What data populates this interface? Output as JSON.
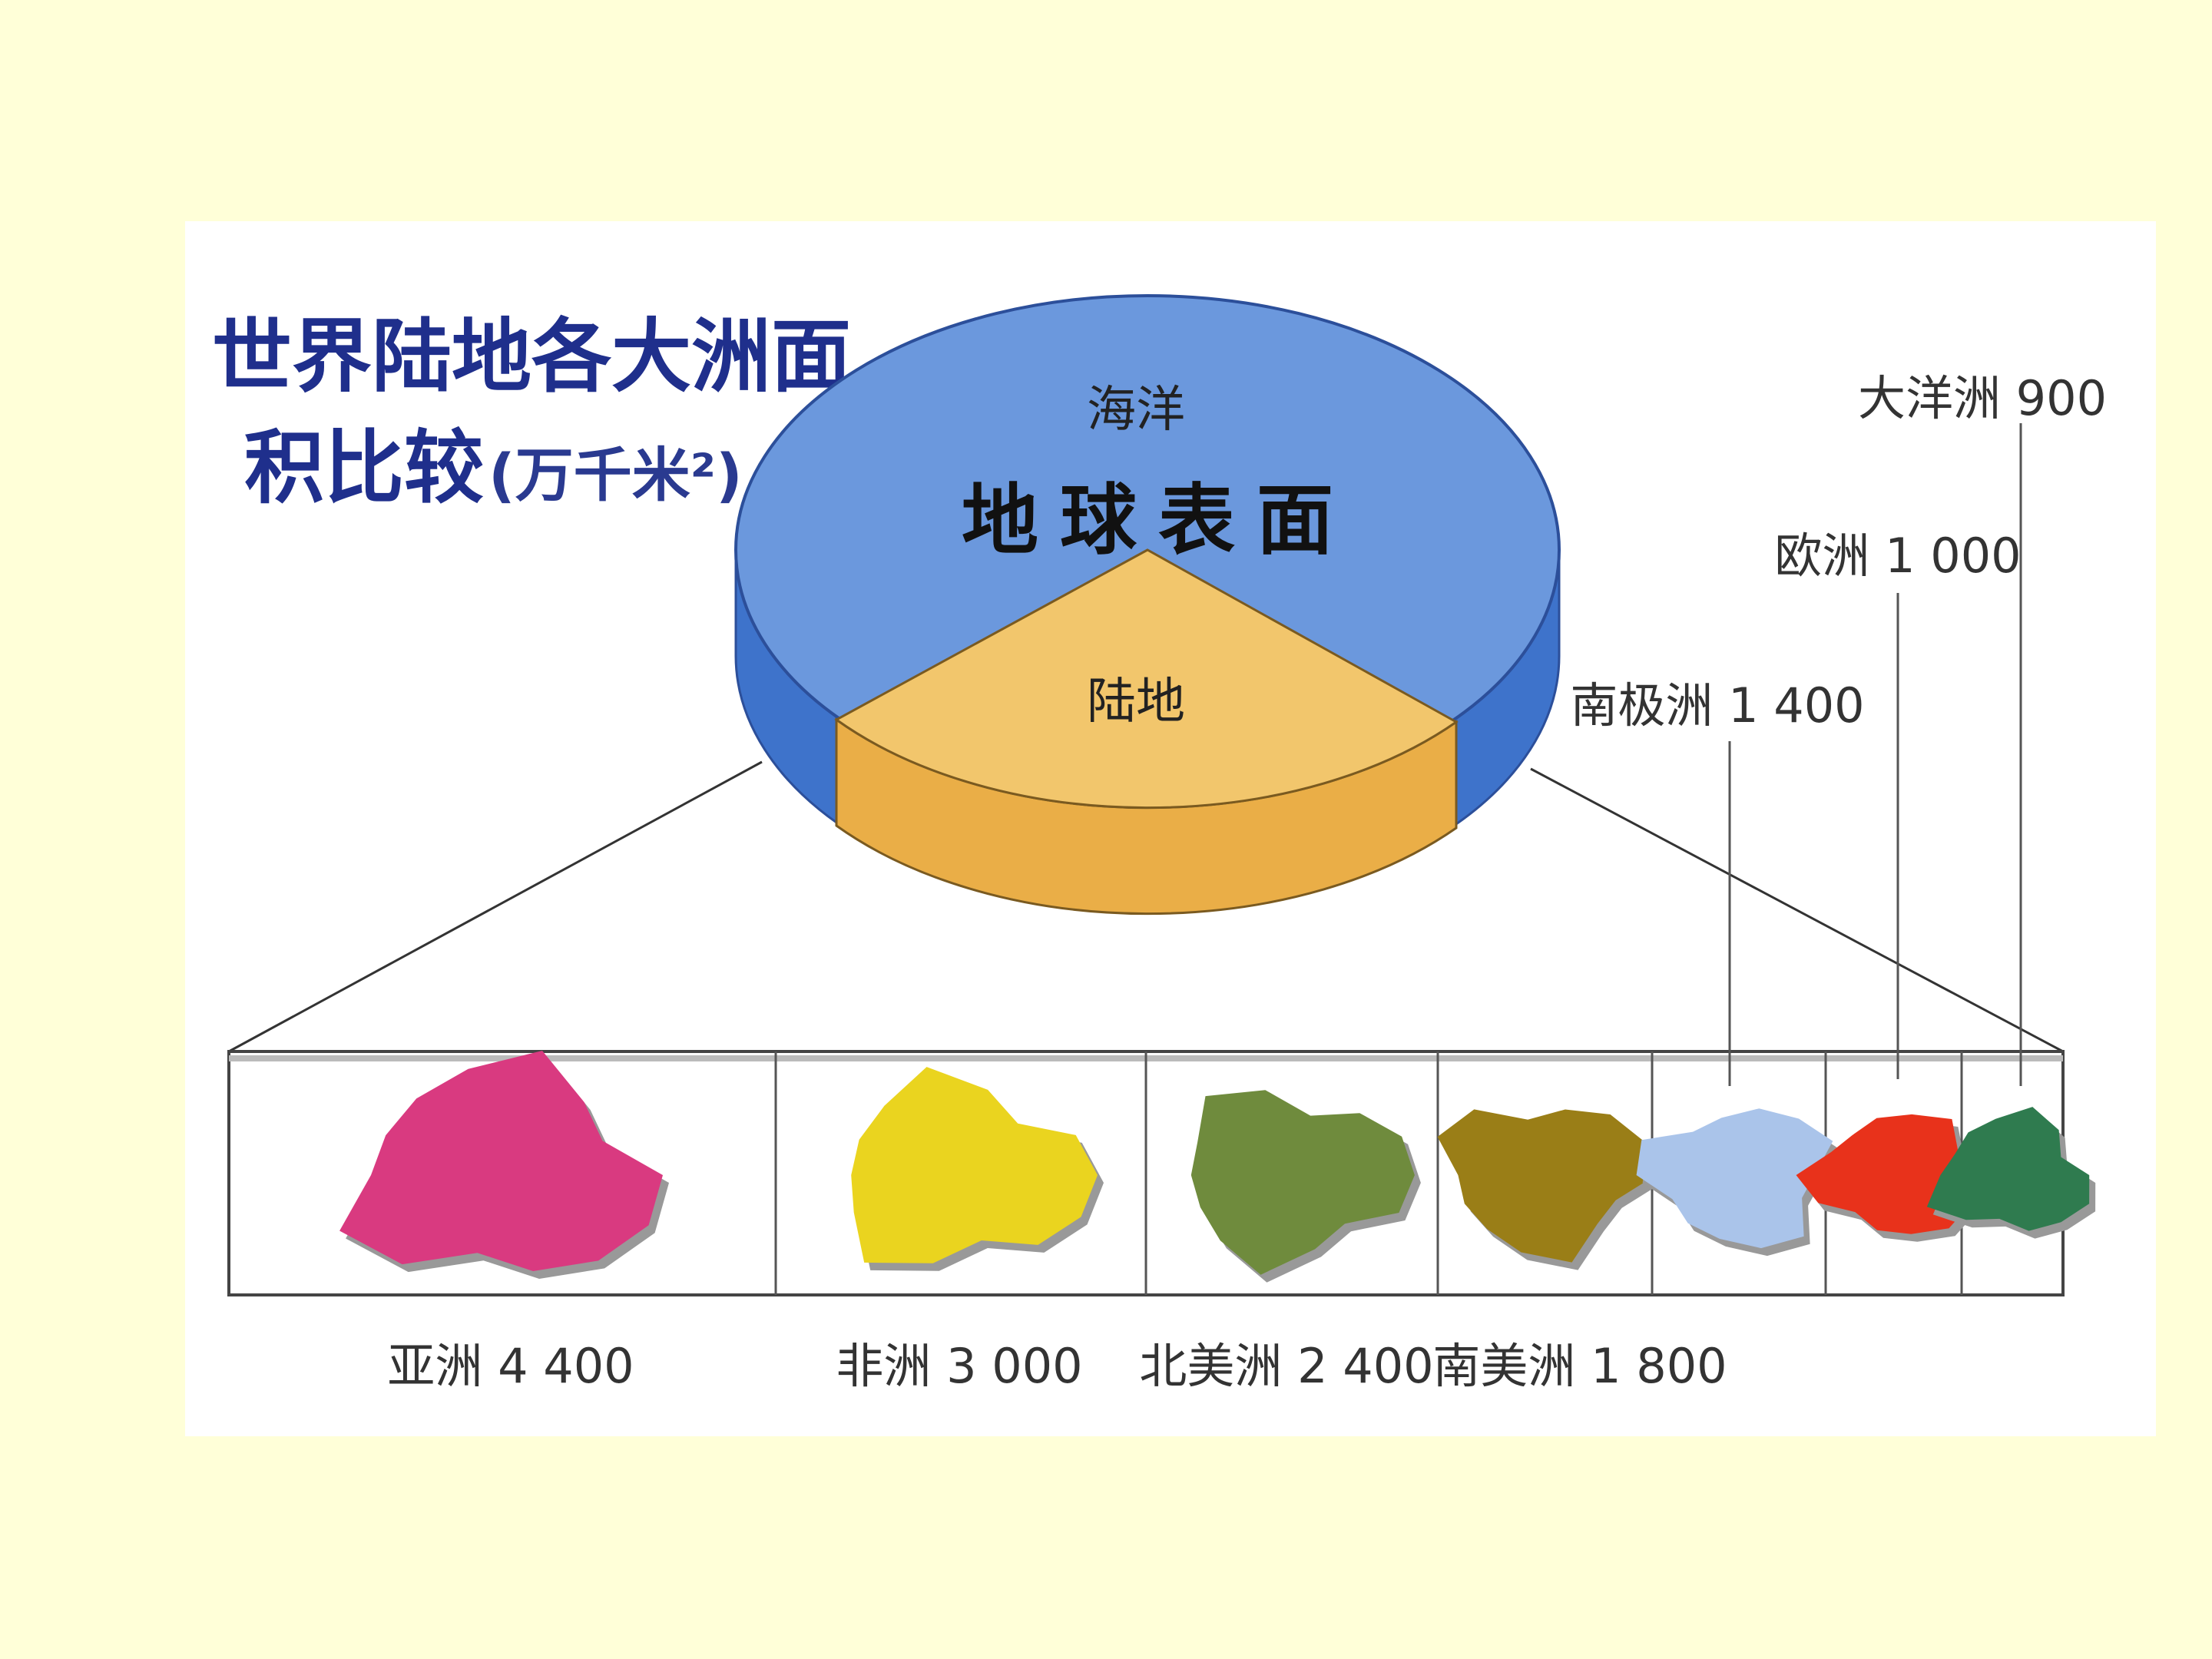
{
  "title": {
    "line1": "世界陆地各大洲面",
    "line2": "积比较",
    "unit": "(万千米²)"
  },
  "pie": {
    "center_label": "地球表面",
    "ocean_label": "海洋",
    "land_label": "陆地",
    "colors": {
      "ocean": "#6b98dd",
      "land": "#f2c66c"
    }
  },
  "chart_data": {
    "type": "bar",
    "title": "世界陆地各大洲面积比较(万千米²)",
    "unit": "万千米²",
    "categories": [
      "亚洲",
      "非洲",
      "北美洲",
      "南美洲",
      "南极洲",
      "欧洲",
      "大洋洲"
    ],
    "values": [
      4400,
      3000,
      2400,
      1800,
      1400,
      1000,
      900
    ],
    "labels": [
      "亚洲 4 400",
      "非洲 3 000",
      "北美洲 2 400",
      "南美洲 1 800",
      "南极洲 1 400",
      "欧洲 1 000",
      "大洋洲 900"
    ],
    "colors": [
      "#d93a80",
      "#ead41f",
      "#6f8b3d",
      "#9a7e17",
      "#aac4ea",
      "#e8321b",
      "#2f7b4f"
    ]
  }
}
